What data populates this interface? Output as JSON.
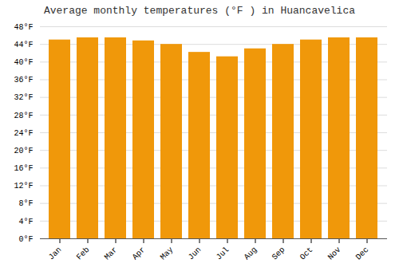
{
  "chart_data": {
    "type": "bar",
    "title": "Average monthly temperatures (°F ) in Huancavelica",
    "categories": [
      "Jan",
      "Feb",
      "Mar",
      "Apr",
      "May",
      "Jun",
      "Jul",
      "Aug",
      "Sep",
      "Oct",
      "Nov",
      "Dec"
    ],
    "values": [
      45.0,
      45.5,
      45.5,
      44.8,
      44.0,
      42.2,
      41.2,
      43.0,
      44.0,
      45.0,
      45.5,
      45.5
    ],
    "color": "#F0980A",
    "ylim": [
      0,
      48
    ],
    "yticks": [
      {
        "value": 0,
        "label": "0°F"
      },
      {
        "value": 4,
        "label": "4°F"
      },
      {
        "value": 8,
        "label": "8°F"
      },
      {
        "value": 12,
        "label": "12°F"
      },
      {
        "value": 16,
        "label": "16°F"
      },
      {
        "value": 20,
        "label": "20°F"
      },
      {
        "value": 24,
        "label": "24°F"
      },
      {
        "value": 28,
        "label": "28°F"
      },
      {
        "value": 32,
        "label": "32°F"
      },
      {
        "value": 36,
        "label": "36°F"
      },
      {
        "value": 40,
        "label": "40°F"
      },
      {
        "value": 44,
        "label": "44°F"
      },
      {
        "value": 48,
        "label": "48°F"
      }
    ],
    "grid": true
  }
}
